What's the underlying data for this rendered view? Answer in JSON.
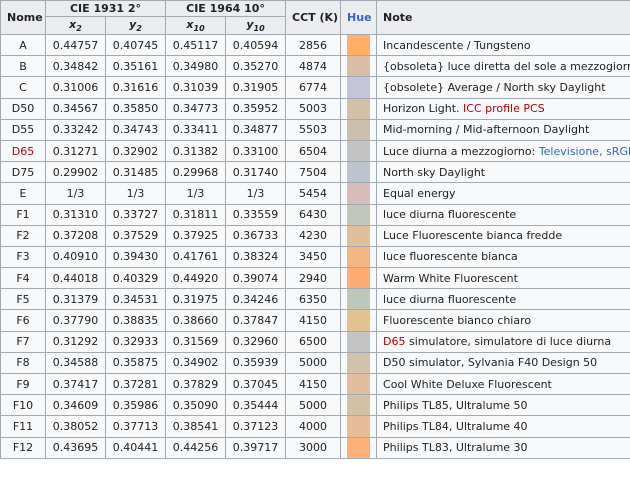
{
  "header": {
    "nome": "Nome",
    "cie1931": "CIE 1931 2°",
    "cie1964": "CIE 1964 10°",
    "cct": "CCT (K)",
    "hue": "Hue",
    "note": "Note",
    "sub": [
      {
        "base": "x",
        "sub": "2"
      },
      {
        "base": "y",
        "sub": "2"
      },
      {
        "base": "x",
        "sub": "10"
      },
      {
        "base": "y",
        "sub": "10"
      }
    ]
  },
  "rows": [
    {
      "name": "A",
      "name_red": false,
      "x2": "0.44757",
      "y2": "0.40745",
      "x10": "0.45117",
      "y10": "0.40594",
      "cct": "2856",
      "hue": "#ffb066",
      "note": [
        {
          "t": "Incandescente / Tungsteno"
        }
      ]
    },
    {
      "name": "B",
      "name_red": false,
      "x2": "0.34842",
      "y2": "0.35161",
      "x10": "0.34980",
      "y10": "0.35270",
      "cct": "4874",
      "hue": "#d9bda6",
      "note": [
        {
          "t": "{obsoleta} luce diretta del sole a mezzogiorno"
        }
      ]
    },
    {
      "name": "C",
      "name_red": false,
      "x2": "0.31006",
      "y2": "0.31616",
      "x10": "0.31039",
      "y10": "0.31905",
      "cct": "6774",
      "hue": "#c5c4d8",
      "note": [
        {
          "t": "{obsolete} Average / North sky Daylight"
        }
      ]
    },
    {
      "name": "D50",
      "name_red": false,
      "x2": "0.34567",
      "y2": "0.35850",
      "x10": "0.34773",
      "y10": "0.35952",
      "cct": "5003",
      "hue": "#d2c0a8",
      "note": [
        {
          "t": "Horizon Light. "
        },
        {
          "t": "ICC profile PCS",
          "cls": "red"
        }
      ]
    },
    {
      "name": "D55",
      "name_red": false,
      "x2": "0.33242",
      "y2": "0.34743",
      "x10": "0.33411",
      "y10": "0.34877",
      "cct": "5503",
      "hue": "#cbbfb0",
      "note": [
        {
          "t": "Mid-morning / Mid-afternoon Daylight"
        }
      ]
    },
    {
      "name": "D65",
      "name_red": true,
      "x2": "0.31271",
      "y2": "0.32902",
      "x10": "0.31382",
      "y10": "0.33100",
      "cct": "6504",
      "hue": "#c3c3c3",
      "note": [
        {
          "t": "Luce diurna a mezzogiorno: "
        },
        {
          "t": "Televisione, sRGB",
          "cls": "lnk"
        }
      ]
    },
    {
      "name": "D75",
      "name_red": false,
      "x2": "0.29902",
      "y2": "0.31485",
      "x10": "0.29968",
      "y10": "0.31740",
      "cct": "7504",
      "hue": "#bcc4cf",
      "note": [
        {
          "t": "North sky Daylight"
        }
      ]
    },
    {
      "name": "E",
      "name_red": false,
      "x2": "1/3",
      "y2": "1/3",
      "x10": "1/3",
      "y10": "1/3",
      "cct": "5454",
      "hue": "#d8bcbc",
      "note": [
        {
          "t": "Equal energy"
        }
      ]
    },
    {
      "name": "F1",
      "name_red": false,
      "x2": "0.31310",
      "y2": "0.33727",
      "x10": "0.31811",
      "y10": "0.33559",
      "cct": "6430",
      "hue": "#c2c6bc",
      "note": [
        {
          "t": "luce diurna fluorescente"
        }
      ]
    },
    {
      "name": "F2",
      "name_red": false,
      "x2": "0.37208",
      "y2": "0.37529",
      "x10": "0.37925",
      "y10": "0.36733",
      "cct": "4230",
      "hue": "#e0bf9a",
      "note": [
        {
          "t": "Luce Fluorescente bianca fredde"
        }
      ]
    },
    {
      "name": "F3",
      "name_red": false,
      "x2": "0.40910",
      "y2": "0.39430",
      "x10": "0.41761",
      "y10": "0.38324",
      "cct": "3450",
      "hue": "#f2b682",
      "note": [
        {
          "t": "luce fluorescente bianca"
        }
      ]
    },
    {
      "name": "F4",
      "name_red": false,
      "x2": "0.44018",
      "y2": "0.40329",
      "x10": "0.44920",
      "y10": "0.39074",
      "cct": "2940",
      "hue": "#ffad70",
      "note": [
        {
          "t": "Warm White Fluorescent"
        }
      ]
    },
    {
      "name": "F5",
      "name_red": false,
      "x2": "0.31379",
      "y2": "0.34531",
      "x10": "0.31975",
      "y10": "0.34246",
      "cct": "6350",
      "hue": "#bfc8b8",
      "note": [
        {
          "t": "luce diurna fluorescente"
        }
      ]
    },
    {
      "name": "F6",
      "name_red": false,
      "x2": "0.37790",
      "y2": "0.38835",
      "x10": "0.38660",
      "y10": "0.37847",
      "cct": "4150",
      "hue": "#e4c192",
      "note": [
        {
          "t": "Fluorescente bianco chiaro"
        }
      ]
    },
    {
      "name": "F7",
      "name_red": false,
      "x2": "0.31292",
      "y2": "0.32933",
      "x10": "0.31569",
      "y10": "0.32960",
      "cct": "6500",
      "hue": "#c4c4c4",
      "note": [
        {
          "t": "D65",
          "cls": "red"
        },
        {
          "t": " simulatore, simulatore di luce diurna"
        }
      ]
    },
    {
      "name": "F8",
      "name_red": false,
      "x2": "0.34588",
      "y2": "0.35875",
      "x10": "0.34902",
      "y10": "0.35939",
      "cct": "5000",
      "hue": "#d2c1ab",
      "note": [
        {
          "t": "D50 simulator, Sylvania F40 Design 50"
        }
      ]
    },
    {
      "name": "F9",
      "name_red": false,
      "x2": "0.37417",
      "y2": "0.37281",
      "x10": "0.37829",
      "y10": "0.37045",
      "cct": "4150",
      "hue": "#e3be9e",
      "note": [
        {
          "t": "Cool White Deluxe Fluorescent"
        }
      ]
    },
    {
      "name": "F10",
      "name_red": false,
      "x2": "0.34609",
      "y2": "0.35986",
      "x10": "0.35090",
      "y10": "0.35444",
      "cct": "5000",
      "hue": "#d4c0a6",
      "note": [
        {
          "t": "Philips TL85, Ultralume 50"
        }
      ]
    },
    {
      "name": "F11",
      "name_red": false,
      "x2": "0.38052",
      "y2": "0.37713",
      "x10": "0.38541",
      "y10": "0.37123",
      "cct": "4000",
      "hue": "#e6bd96",
      "note": [
        {
          "t": "Philips TL84, Ultralume 40"
        }
      ]
    },
    {
      "name": "F12",
      "name_red": false,
      "x2": "0.43695",
      "y2": "0.40441",
      "x10": "0.44256",
      "y10": "0.39717",
      "cct": "3000",
      "hue": "#ffb07a",
      "note": [
        {
          "t": "Philips TL83, Ultralume 30"
        }
      ]
    }
  ]
}
